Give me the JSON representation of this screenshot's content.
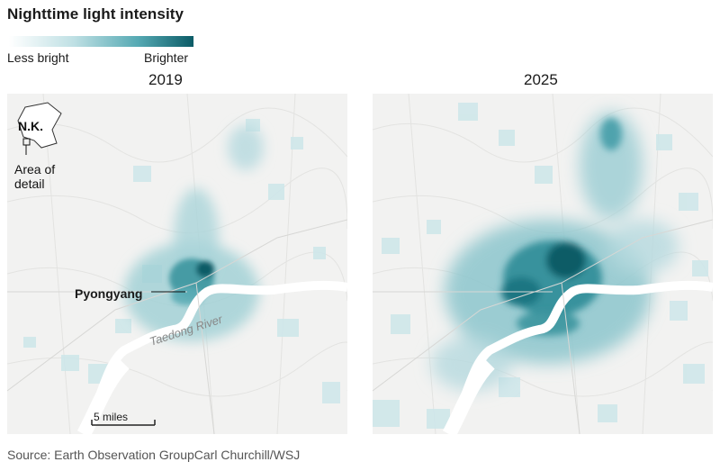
{
  "title": "Nighttime light intensity",
  "legend": {
    "low_label": "Less bright",
    "high_label": "Brighter",
    "colors": [
      "#ffffff",
      "#bfe0e4",
      "#55a9b3",
      "#0b5b66"
    ]
  },
  "panels": [
    {
      "year": "2019"
    },
    {
      "year": "2025"
    }
  ],
  "inset": {
    "country": "N.K.",
    "detail_label_line1": "Area of",
    "detail_label_line2": "detail"
  },
  "labels": {
    "city": "Pyongyang",
    "river": "Taedong River",
    "scale": "5 miles"
  },
  "source": "Source: Earth Observation GroupCarl Churchill/WSJ",
  "colors": {
    "river": "#ffffff",
    "terrain": "#f2f2f1",
    "light_dark": "#0b5b66",
    "light_mid": "#4fa3ad",
    "light_pale": "#cfe7ea"
  }
}
